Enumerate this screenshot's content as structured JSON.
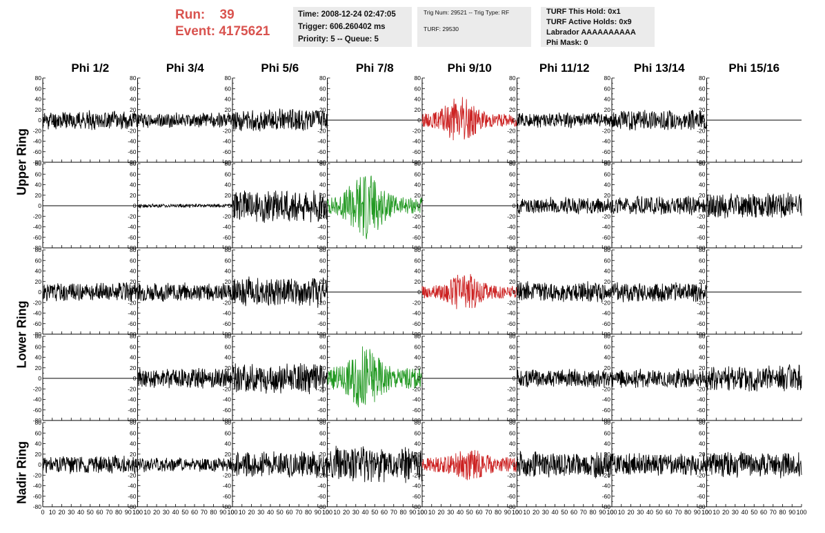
{
  "header": {
    "run_label": "Run:",
    "run_value": "39",
    "event_label": "Event:",
    "event_value": "4175621",
    "info_box_1": [
      "Time: 2008-12-24 02:47:05",
      "Trigger: 606.260402 ms",
      "Priority: 5 -- Queue: 5"
    ],
    "info_box_2": [
      "Trig Num: 29521 -- Trig Type: RF",
      "TURF: 29530"
    ],
    "info_box_3": [
      "TURF This Hold: 0x1",
      "TURF Active Holds: 0x9",
      "Labrador AAAAAAAAAA",
      "Phi Mask: 0"
    ]
  },
  "row_labels": [
    "Upper Ring",
    "Lower Ring",
    "Nadir Ring"
  ],
  "colors": {
    "normal": "#000000",
    "red": "#cc2222",
    "green": "#229922",
    "header_red": "#d9534f",
    "box_bg": "#ebebeb"
  },
  "chart_data": {
    "type": "line",
    "title": "",
    "column_titles": [
      "Phi 1/2",
      "Phi 3/4",
      "Phi 5/6",
      "Phi 7/8",
      "Phi 9/10",
      "Phi 11/12",
      "Phi 13/14",
      "Phi 15/16"
    ],
    "x_ticks": [
      0,
      10,
      20,
      30,
      40,
      50,
      60,
      70,
      80,
      90,
      100
    ],
    "x_tick_labels": [
      "0",
      "10",
      "20",
      "30",
      "40",
      "50",
      "60",
      "70",
      "80",
      "90",
      "100"
    ],
    "y_ticks": [
      -80,
      -60,
      -40,
      -20,
      0,
      20,
      40,
      60,
      80
    ],
    "y_tick_labels": [
      "-80",
      "-60",
      "-40",
      "-20",
      "0",
      "20",
      "40",
      "60",
      "80"
    ],
    "xlim": [
      0,
      100
    ],
    "ylim": [
      -80,
      80
    ],
    "grid": false,
    "panels": [
      [
        {
          "kind": "noise",
          "amp": 10,
          "color": "normal",
          "seed": 11
        },
        {
          "kind": "noise",
          "amp": 8,
          "color": "normal",
          "seed": 12
        },
        {
          "kind": "noise",
          "amp": 12,
          "color": "normal",
          "seed": 13
        },
        {
          "kind": "flat",
          "color": "normal",
          "seed": 14
        },
        {
          "kind": "pulse",
          "amp": 12,
          "peak": 45,
          "peak_pos": 40,
          "color": "red",
          "seed": 15
        },
        {
          "kind": "noise",
          "amp": 8,
          "color": "normal",
          "seed": 16
        },
        {
          "kind": "noise",
          "amp": 11,
          "color": "normal",
          "seed": 17
        },
        {
          "kind": "flat",
          "color": "normal",
          "seed": 18
        }
      ],
      [
        {
          "kind": "flat",
          "color": "normal",
          "seed": 21
        },
        {
          "kind": "noise",
          "amp": 2,
          "color": "normal",
          "seed": 22
        },
        {
          "kind": "noise",
          "amp": 18,
          "color": "normal",
          "seed": 23
        },
        {
          "kind": "pulse",
          "amp": 16,
          "peak": 68,
          "peak_pos": 40,
          "color": "green",
          "seed": 24
        },
        {
          "kind": "flat",
          "color": "normal",
          "seed": 25
        },
        {
          "kind": "noise",
          "amp": 9,
          "color": "normal",
          "seed": 26
        },
        {
          "kind": "noise",
          "amp": 10,
          "color": "normal",
          "seed": 27
        },
        {
          "kind": "noise",
          "amp": 14,
          "color": "normal",
          "seed": 28
        }
      ],
      [
        {
          "kind": "noise",
          "amp": 10,
          "color": "normal",
          "seed": 31
        },
        {
          "kind": "noise",
          "amp": 10,
          "color": "normal",
          "seed": 32
        },
        {
          "kind": "noise",
          "amp": 16,
          "color": "normal",
          "seed": 33
        },
        {
          "kind": "flat",
          "color": "normal",
          "seed": 34
        },
        {
          "kind": "pulse",
          "amp": 12,
          "peak": 38,
          "peak_pos": 45,
          "color": "red",
          "seed": 35
        },
        {
          "kind": "noise",
          "amp": 11,
          "color": "normal",
          "seed": 36
        },
        {
          "kind": "noise",
          "amp": 11,
          "color": "normal",
          "seed": 37
        },
        {
          "kind": "flat",
          "color": "normal",
          "seed": 38
        }
      ],
      [
        {
          "kind": "flat",
          "color": "normal",
          "seed": 41
        },
        {
          "kind": "noise",
          "amp": 11,
          "color": "normal",
          "seed": 42
        },
        {
          "kind": "noise",
          "amp": 16,
          "color": "normal",
          "seed": 43
        },
        {
          "kind": "pulse",
          "amp": 20,
          "peak": 62,
          "peak_pos": 40,
          "color": "green",
          "seed": 44
        },
        {
          "kind": "flat",
          "color": "normal",
          "seed": 45
        },
        {
          "kind": "noise",
          "amp": 10,
          "color": "normal",
          "seed": 46
        },
        {
          "kind": "noise",
          "amp": 10,
          "color": "normal",
          "seed": 47
        },
        {
          "kind": "noise",
          "amp": 15,
          "color": "normal",
          "seed": 48
        }
      ],
      [
        {
          "kind": "noise",
          "amp": 10,
          "color": "normal",
          "seed": 51
        },
        {
          "kind": "noise",
          "amp": 8,
          "color": "normal",
          "seed": 52
        },
        {
          "kind": "noise",
          "amp": 14,
          "color": "normal",
          "seed": 53
        },
        {
          "kind": "noise",
          "amp": 20,
          "color": "normal",
          "seed": 54
        },
        {
          "kind": "pulse",
          "amp": 14,
          "peak": 30,
          "peak_pos": 50,
          "color": "red",
          "seed": 55
        },
        {
          "kind": "noise",
          "amp": 14,
          "color": "normal",
          "seed": 56
        },
        {
          "kind": "noise",
          "amp": 12,
          "color": "normal",
          "seed": 57
        },
        {
          "kind": "noise",
          "amp": 14,
          "color": "normal",
          "seed": 58
        }
      ]
    ]
  }
}
